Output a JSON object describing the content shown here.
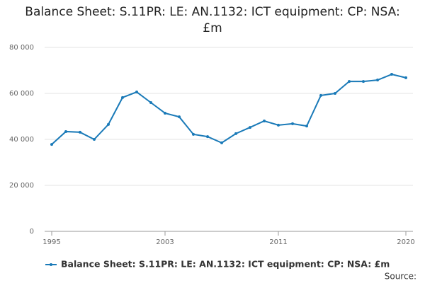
{
  "chart_data": {
    "type": "line",
    "title": "Balance Sheet: S.11PR: LE: AN.1132: ICT equipment: CP: NSA: £m",
    "x": [
      1995,
      1996,
      1997,
      1998,
      1999,
      2000,
      2001,
      2002,
      2003,
      2004,
      2005,
      2006,
      2007,
      2008,
      2009,
      2010,
      2011,
      2012,
      2013,
      2014,
      2015,
      2016,
      2017,
      2018,
      2019,
      2020
    ],
    "series": [
      {
        "name": "Balance Sheet: S.11PR: LE: AN.1132: ICT equipment: CP: NSA: £m",
        "color": "#1a7ab8",
        "values": [
          37800,
          43400,
          43100,
          40000,
          46500,
          58200,
          60600,
          56000,
          51400,
          49800,
          42200,
          41200,
          38500,
          42500,
          45200,
          48000,
          46200,
          46800,
          45800,
          59100,
          60000,
          65200,
          65200,
          65800,
          68300,
          66800
        ]
      }
    ],
    "xlim": [
      1994.5,
      2020.5
    ],
    "xticks": [
      1995,
      2003,
      2011,
      2020
    ],
    "ylim": [
      0,
      80000
    ],
    "yticks": [
      0,
      {
        "value": 20000,
        "label": "20 000"
      },
      {
        "value": 40000,
        "label": "40 000"
      },
      {
        "value": 60000,
        "label": "60 000"
      },
      {
        "value": 80000,
        "label": "80 000"
      }
    ],
    "grid": true,
    "legend": "bottom",
    "source": "Source:"
  }
}
